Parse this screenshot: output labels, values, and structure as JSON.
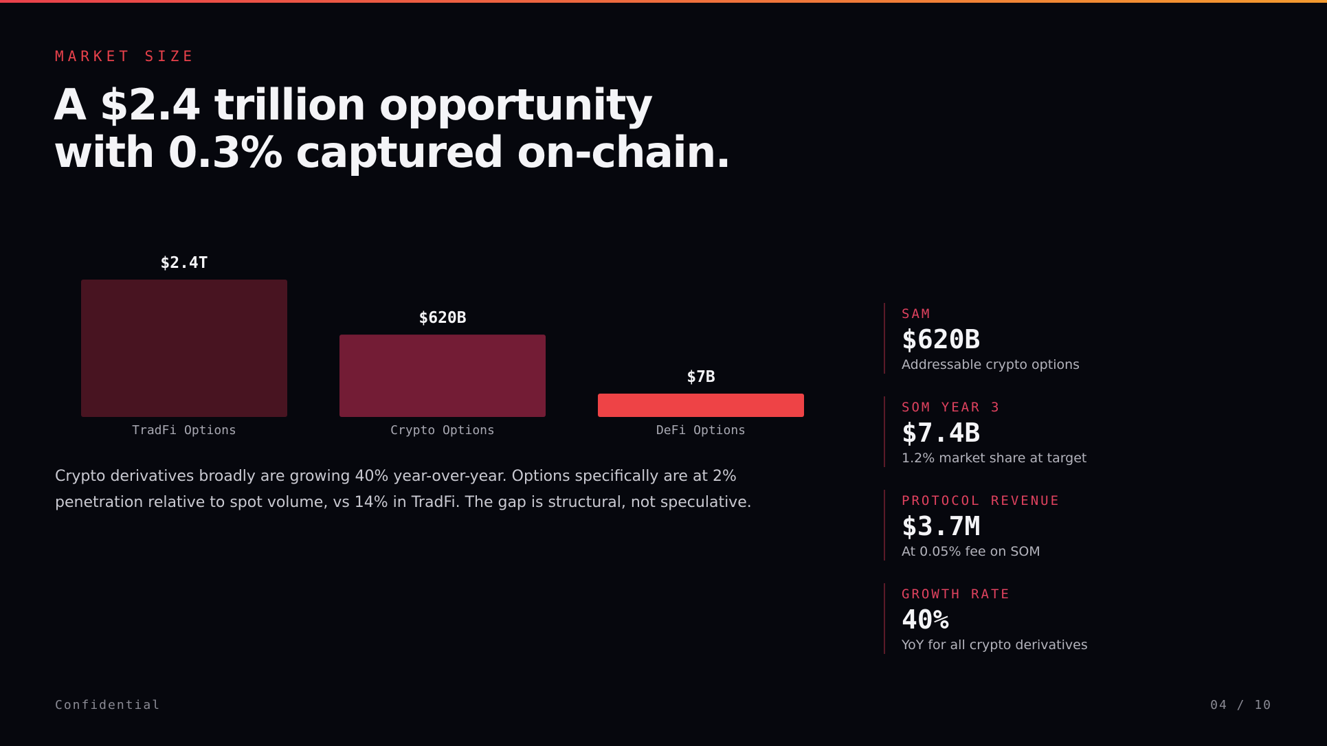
{
  "slide": {
    "eyebrow": "MARKET SIZE",
    "headline_line1": "A $2.4 trillion opportunity",
    "headline_line2": "with 0.3% captured on-chain.",
    "body": "Crypto derivatives broadly are growing 40% year-over-year. Options specifically are at 2% penetration relative to spot volume, vs 14% in TradFi. The gap is structural, not speculative.",
    "footer_left": "Confidential",
    "footer_right": "04 / 10"
  },
  "colors": {
    "accent": "#e8414b",
    "bar_tradfi": "#481421",
    "bar_crypto": "#731c35",
    "bar_defi": "#ee4346",
    "top_gradient_start": "#e8414b",
    "top_gradient_end": "#f39a2f"
  },
  "chart_data": {
    "type": "bar",
    "categories": [
      "TradFi Options",
      "Crypto Options",
      "DeFi Options"
    ],
    "values": [
      2400,
      620,
      7
    ],
    "unit": "billion USD",
    "data_labels": [
      "$2.4T",
      "$620B",
      "$7B"
    ],
    "title": "",
    "xlabel": "",
    "ylabel": "",
    "grid": false,
    "legend": "none"
  },
  "stats": [
    {
      "label": "SAM",
      "value": "$620B",
      "desc": "Addressable crypto options"
    },
    {
      "label": "SOM YEAR 3",
      "value": "$7.4B",
      "desc": "1.2% market share at target"
    },
    {
      "label": "PROTOCOL REVENUE",
      "value": "$3.7M",
      "desc": "At 0.05% fee on SOM"
    },
    {
      "label": "GROWTH RATE",
      "value": "40%",
      "desc": "YoY for all crypto derivatives"
    }
  ]
}
